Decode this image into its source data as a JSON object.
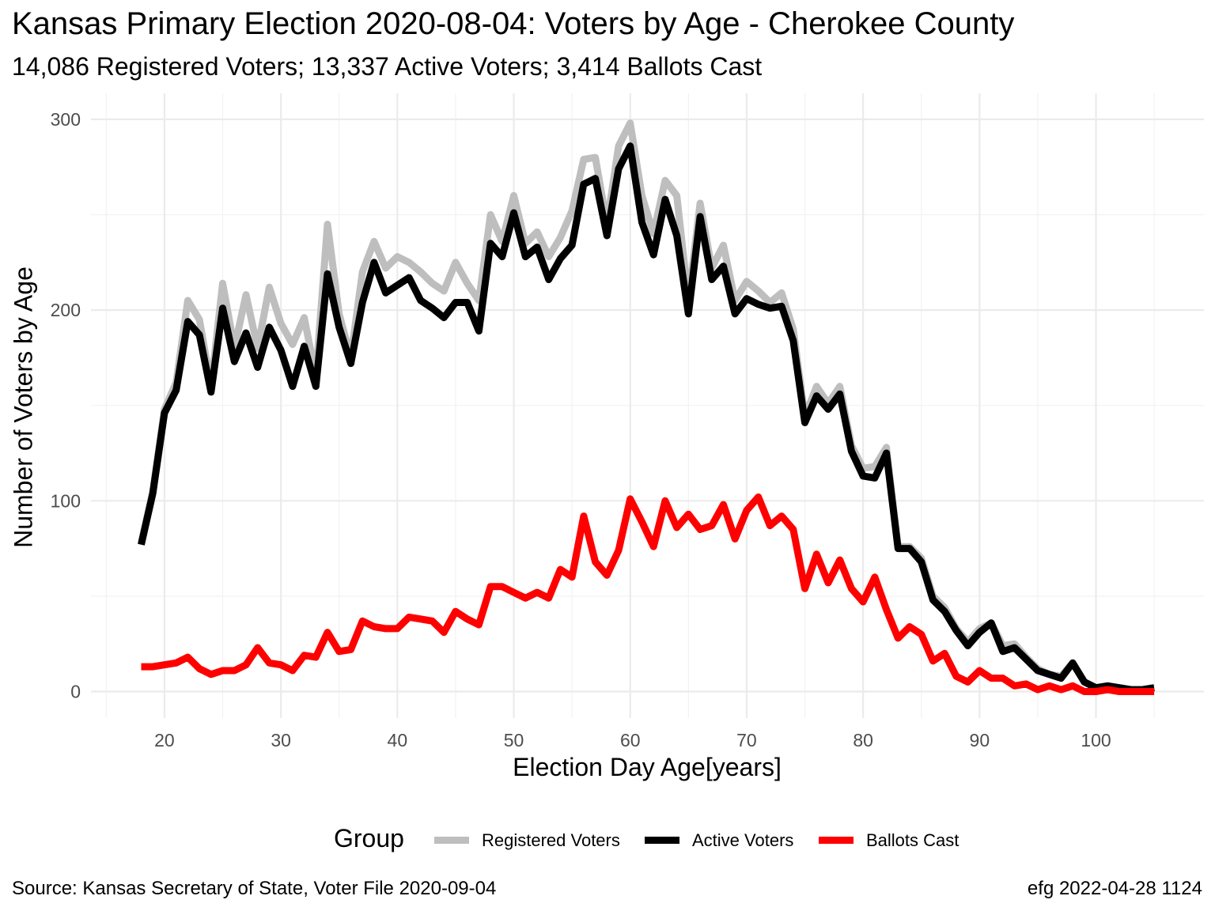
{
  "chart_data": {
    "type": "line",
    "title": "Kansas Primary Election 2020-08-04:  Voters by Age - Cherokee County",
    "subtitle": "14,086 Registered Voters; 13,337 Active Voters; 3,414 Ballots Cast",
    "xlabel": "Election Day Age[years]",
    "ylabel": "Number of Voters by Age",
    "xlim": [
      18,
      105
    ],
    "ylim": [
      0,
      300
    ],
    "x_ticks": [
      20,
      30,
      40,
      50,
      60,
      70,
      80,
      90,
      100
    ],
    "y_ticks": [
      0,
      100,
      200,
      300
    ],
    "grid": true,
    "legend_title": "Group",
    "legend_position": "bottom",
    "x": [
      18,
      19,
      20,
      21,
      22,
      23,
      24,
      25,
      26,
      27,
      28,
      29,
      30,
      31,
      32,
      33,
      34,
      35,
      36,
      37,
      38,
      39,
      40,
      41,
      42,
      43,
      44,
      45,
      46,
      47,
      48,
      49,
      50,
      51,
      52,
      53,
      54,
      55,
      56,
      57,
      58,
      59,
      60,
      61,
      62,
      63,
      64,
      65,
      66,
      67,
      68,
      69,
      70,
      71,
      72,
      73,
      74,
      75,
      76,
      77,
      78,
      79,
      80,
      81,
      82,
      83,
      84,
      85,
      86,
      87,
      88,
      89,
      90,
      91,
      92,
      93,
      94,
      95,
      96,
      97,
      98,
      99,
      100,
      101,
      102,
      103,
      104,
      105
    ],
    "series": [
      {
        "name": "Registered Voters",
        "color": "#bebebe",
        "values": [
          78,
          105,
          148,
          162,
          205,
          195,
          160,
          214,
          180,
          208,
          180,
          212,
          193,
          182,
          196,
          165,
          245,
          198,
          175,
          220,
          236,
          222,
          228,
          225,
          220,
          214,
          210,
          225,
          214,
          205,
          250,
          236,
          260,
          235,
          241,
          228,
          238,
          252,
          279,
          280,
          245,
          286,
          298,
          260,
          240,
          268,
          260,
          205,
          256,
          222,
          234,
          205,
          215,
          210,
          204,
          209,
          190,
          144,
          160,
          151,
          160,
          129,
          117,
          118,
          128,
          76,
          76,
          70,
          50,
          44,
          33,
          26,
          33,
          36,
          24,
          25,
          18,
          12,
          9,
          8,
          15,
          5,
          2,
          3,
          2,
          1,
          1,
          2
        ]
      },
      {
        "name": "Active Voters",
        "color": "#000000",
        "values": [
          77,
          104,
          146,
          158,
          194,
          187,
          157,
          201,
          173,
          188,
          170,
          191,
          179,
          160,
          181,
          160,
          219,
          191,
          172,
          204,
          225,
          209,
          213,
          217,
          205,
          201,
          196,
          204,
          204,
          189,
          235,
          228,
          251,
          228,
          233,
          216,
          227,
          234,
          266,
          269,
          239,
          274,
          286,
          246,
          229,
          258,
          239,
          198,
          249,
          216,
          223,
          198,
          206,
          203,
          201,
          202,
          184,
          141,
          155,
          148,
          156,
          126,
          113,
          112,
          125,
          75,
          75,
          68,
          48,
          42,
          32,
          24,
          31,
          36,
          21,
          23,
          17,
          11,
          9,
          7,
          15,
          5,
          2,
          3,
          2,
          1,
          1,
          2
        ]
      },
      {
        "name": "Ballots Cast",
        "color": "#ff0000",
        "values": [
          13,
          13,
          14,
          15,
          18,
          12,
          9,
          11,
          11,
          14,
          23,
          15,
          14,
          11,
          19,
          18,
          31,
          21,
          22,
          37,
          34,
          33,
          33,
          39,
          38,
          37,
          31,
          42,
          38,
          35,
          55,
          55,
          52,
          49,
          52,
          49,
          64,
          60,
          92,
          68,
          61,
          74,
          101,
          89,
          76,
          100,
          86,
          93,
          85,
          87,
          98,
          80,
          95,
          102,
          87,
          92,
          85,
          54,
          72,
          57,
          69,
          54,
          47,
          60,
          43,
          28,
          34,
          30,
          16,
          20,
          8,
          5,
          11,
          7,
          7,
          3,
          4,
          1,
          3,
          1,
          3,
          0,
          0,
          1,
          0,
          0,
          0,
          0
        ]
      }
    ]
  },
  "caption": {
    "source": "Source:  Kansas Secretary of State, Voter File  2020-09-04",
    "stamp": "efg 2022-04-28 1124"
  }
}
